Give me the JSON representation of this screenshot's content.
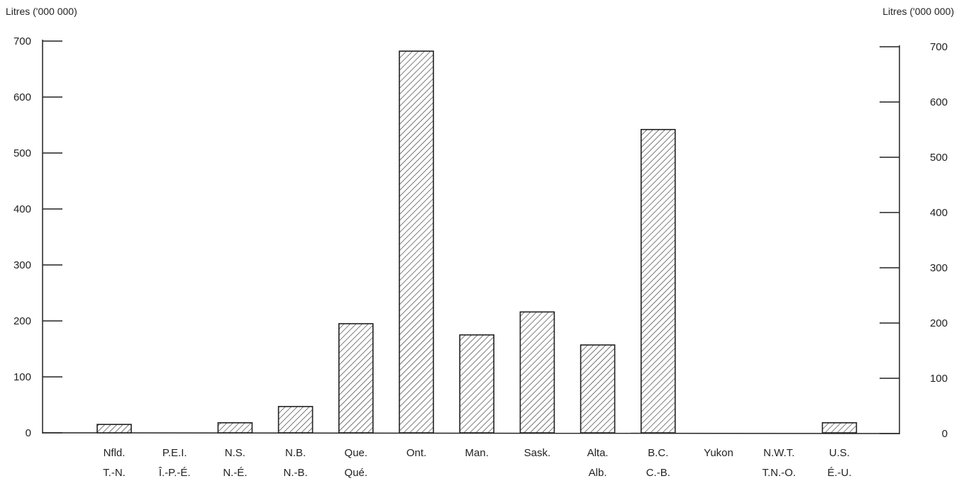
{
  "chart_data": {
    "type": "bar",
    "ylabel_left": "Litres ('000 000)",
    "ylabel_right": "Litres ('000 000)",
    "categories": [
      {
        "en": "Nfld.",
        "fr": "T.-N."
      },
      {
        "en": "P.E.I.",
        "fr": "Î.-P.-É."
      },
      {
        "en": "N.S.",
        "fr": "N.-É."
      },
      {
        "en": "N.B.",
        "fr": "N.-B."
      },
      {
        "en": "Que.",
        "fr": "Qué."
      },
      {
        "en": "Ont.",
        "fr": ""
      },
      {
        "en": "Man.",
        "fr": ""
      },
      {
        "en": "Sask.",
        "fr": ""
      },
      {
        "en": "Alta.",
        "fr": "Alb."
      },
      {
        "en": "B.C.",
        "fr": "C.-B."
      },
      {
        "en": "Yukon",
        "fr": ""
      },
      {
        "en": "N.W.T.",
        "fr": "T.N.-O."
      },
      {
        "en": "U.S.",
        "fr": "É.-U."
      }
    ],
    "values": [
      15,
      0,
      18,
      47,
      195,
      682,
      175,
      216,
      157,
      542,
      0,
      0,
      18
    ],
    "ylim": [
      0,
      700
    ],
    "yticks": [
      0,
      100,
      200,
      300,
      400,
      500,
      600,
      700
    ],
    "bar_fill": "hatched",
    "grid": false
  }
}
